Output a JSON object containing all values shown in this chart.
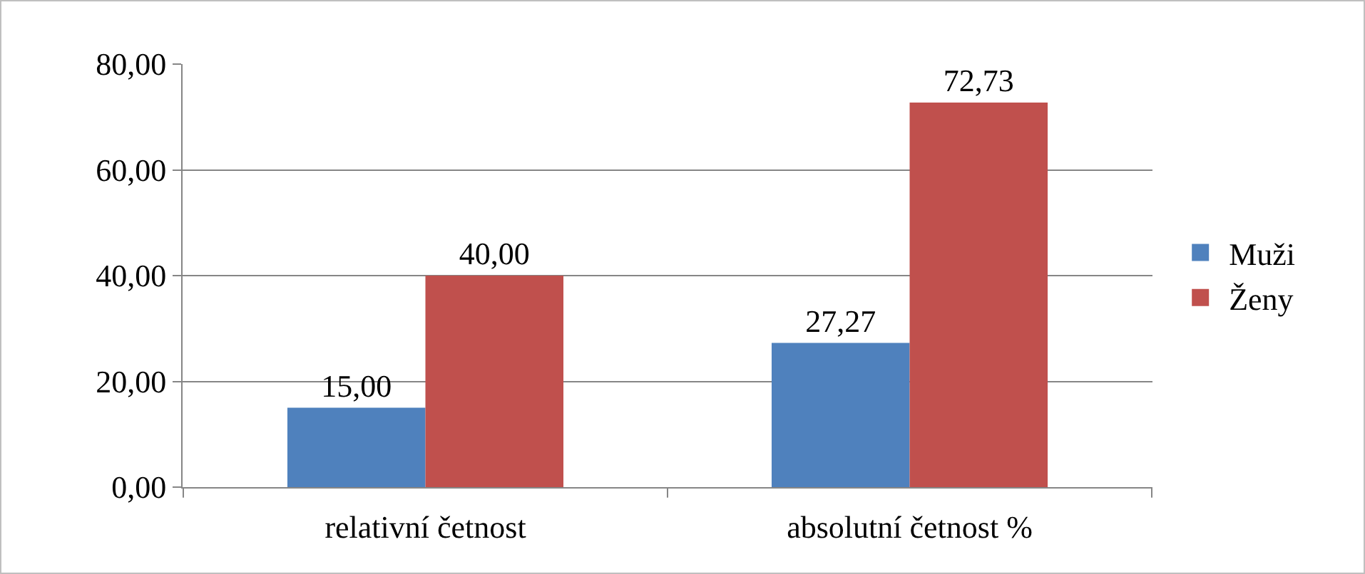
{
  "chart_data": {
    "type": "bar",
    "categories": [
      "relativní četnost",
      "absolutní četnost %"
    ],
    "series": [
      {
        "name": "Muži",
        "color": "#4f81bd",
        "values": [
          15,
          27.27
        ],
        "value_labels": [
          "15,00",
          "27,27"
        ]
      },
      {
        "name": "Ženy",
        "color": "#c0504d",
        "values": [
          40,
          72.73
        ],
        "value_labels": [
          "40,00",
          "72,73"
        ]
      }
    ],
    "ylim": [
      0,
      80
    ],
    "yticks": [
      {
        "value": 0,
        "label": "0,00"
      },
      {
        "value": 20,
        "label": "20,00"
      },
      {
        "value": 40,
        "label": "40,00"
      },
      {
        "value": 60,
        "label": "60,00"
      },
      {
        "value": 80,
        "label": "80,00"
      }
    ],
    "grid": "y",
    "legend": "right"
  }
}
